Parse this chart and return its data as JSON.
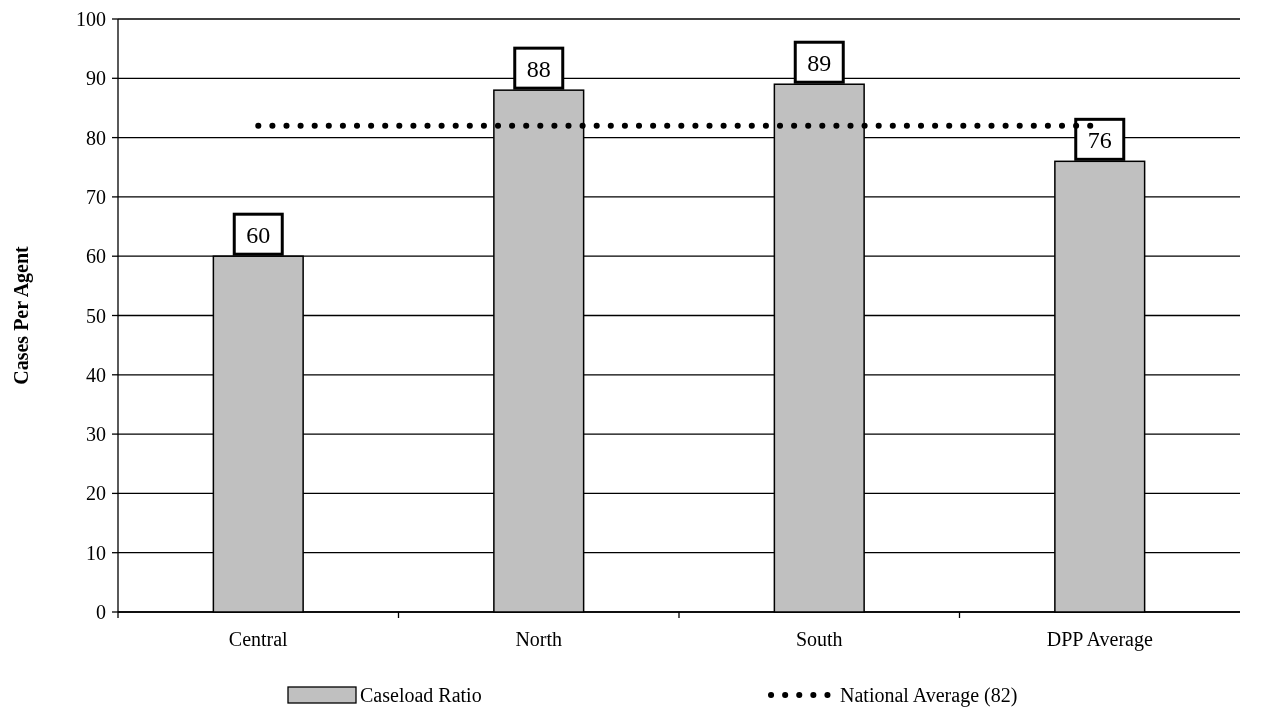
{
  "chart_data": {
    "type": "bar",
    "ylabel": "Cases Per Agent",
    "categories": [
      "Central",
      "North",
      "South",
      "DPP Average"
    ],
    "series": [
      {
        "name": "Caseload Ratio",
        "color": "#c0c0c0",
        "values": [
          60,
          88,
          89,
          76
        ],
        "value_labels": [
          "60",
          "88",
          "89",
          "76"
        ]
      },
      {
        "name": "National Average (82)",
        "type": "line",
        "color": "#000000",
        "values": [
          82,
          82,
          82,
          82
        ],
        "marker": "none",
        "line_style": "dotted"
      }
    ],
    "ylim": [
      0,
      100
    ],
    "yticks": [
      0,
      10,
      20,
      30,
      40,
      50,
      60,
      70,
      80,
      90,
      100
    ],
    "grid": "y",
    "legend": "bottom"
  }
}
